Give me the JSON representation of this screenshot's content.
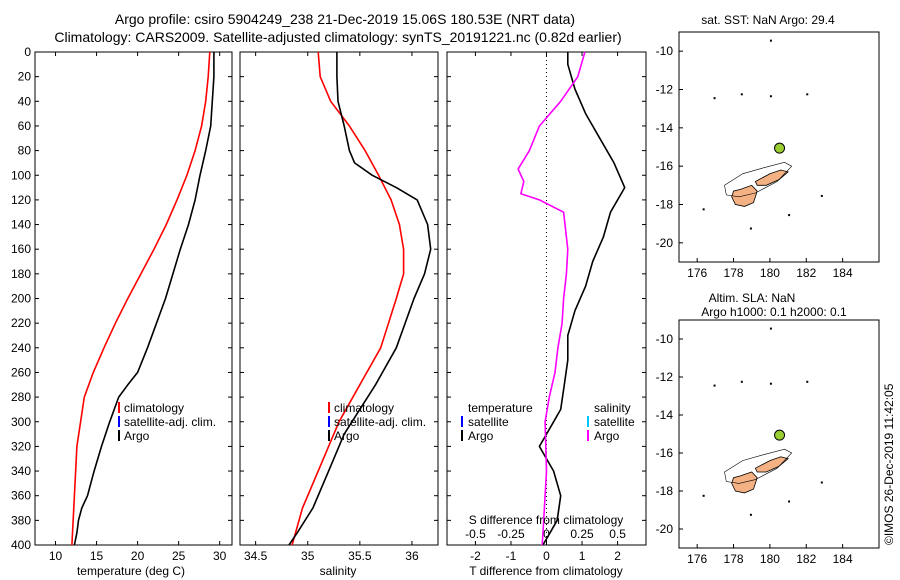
{
  "title_line1": "Argo profile: csiro 5904249_238 21-Dec-2019 15.06S 180.53E (NRT data)",
  "title_line2": "Climatology: CARS2009. Satellite-adjusted climatology: synTS_20191221.nc (0.82d earlier)",
  "footer_stamp": "©IMOS 26-Dec-2019 11:42:05",
  "colors": {
    "climatology": "#ff0000",
    "satellite": "#0000ff",
    "argo": "#000000",
    "salinity_diff": "#ff00ff",
    "sat_salinity": "#00c8ff",
    "marker": "#9acd32",
    "land": "#f4b183"
  },
  "chart_data": [
    {
      "type": "line",
      "name": "temperature",
      "xlabel": "temperature (deg C)",
      "xlim": [
        7.5,
        31.5
      ],
      "ylim": [
        0,
        400
      ],
      "xticks": [
        10,
        15,
        20,
        25,
        30
      ],
      "yticks": [
        0,
        20,
        40,
        60,
        80,
        100,
        120,
        140,
        160,
        180,
        200,
        220,
        240,
        260,
        280,
        300,
        320,
        340,
        360,
        380,
        400
      ],
      "legend": [
        "climatology",
        "satellite-adj. clim.",
        "Argo"
      ],
      "series": [
        {
          "name": "climatology",
          "color": "#ff0000",
          "x": [
            28.8,
            28.6,
            28.3,
            27.8,
            27.0,
            26.0,
            24.8,
            23.5,
            22.0,
            20.4,
            18.8,
            17.3,
            15.9,
            14.6,
            13.5,
            12.6,
            12.0
          ],
          "y": [
            0,
            20,
            40,
            60,
            80,
            100,
            120,
            140,
            160,
            180,
            200,
            220,
            240,
            260,
            280,
            320,
            400
          ]
        },
        {
          "name": "Argo",
          "color": "#000000",
          "x": [
            29.3,
            29.3,
            29.1,
            28.9,
            28.3,
            27.6,
            27.0,
            26.2,
            25.2,
            24.3,
            23.4,
            22.3,
            21.2,
            20.0,
            18.8,
            17.7,
            16.6,
            15.6,
            14.7,
            13.9,
            13.2,
            12.8,
            12.6,
            12.3
          ],
          "y": [
            0,
            20,
            40,
            60,
            80,
            100,
            120,
            140,
            160,
            180,
            200,
            220,
            240,
            260,
            270,
            280,
            300,
            320,
            340,
            360,
            370,
            380,
            390,
            400
          ]
        }
      ]
    },
    {
      "type": "line",
      "name": "salinity",
      "xlabel": "salinity",
      "xlim": [
        34.35,
        36.25
      ],
      "ylim": [
        0,
        400
      ],
      "xticks": [
        34.5,
        35,
        35.5,
        36
      ],
      "xticklabels": [
        "34.5",
        "35",
        "35.5",
        "36"
      ],
      "legend": [
        "climatology",
        "satellite-adj. clim.",
        "Argo"
      ],
      "series": [
        {
          "name": "climatology",
          "color": "#ff0000",
          "x": [
            35.1,
            35.12,
            35.22,
            35.4,
            35.55,
            35.68,
            35.8,
            35.88,
            35.92,
            35.92,
            35.85,
            35.7,
            35.5,
            35.3,
            35.1,
            34.95,
            34.85
          ],
          "y": [
            0,
            20,
            40,
            60,
            80,
            100,
            120,
            140,
            160,
            180,
            200,
            240,
            270,
            300,
            340,
            370,
            400
          ]
        },
        {
          "name": "Argo",
          "color": "#000000",
          "x": [
            35.28,
            35.28,
            35.29,
            35.35,
            35.4,
            35.45,
            35.62,
            35.85,
            36.05,
            36.15,
            36.18,
            36.12,
            36.02,
            35.85,
            35.65,
            35.5,
            35.35,
            35.2,
            35.05,
            34.9,
            34.82
          ],
          "y": [
            0,
            20,
            40,
            60,
            80,
            90,
            100,
            110,
            120,
            140,
            160,
            180,
            200,
            240,
            270,
            290,
            310,
            340,
            370,
            390,
            400
          ]
        }
      ]
    },
    {
      "type": "line",
      "name": "difference",
      "xlabel": "T difference from climatology",
      "xlabel_top": "S difference from climatology",
      "xlim": [
        -2.8,
        2.8
      ],
      "ylim": [
        0,
        400
      ],
      "xticks": [
        -2,
        -1,
        0,
        1,
        2
      ],
      "sticks": [
        -0.5,
        -0.25,
        0,
        0.25,
        0.5
      ],
      "sticklabels": [
        "-0.5",
        "-0.25",
        "0",
        "0.25",
        "0.5"
      ],
      "legend_left_title": "temperature",
      "legend_right_title": "salinity",
      "legend_left": [
        "satellite",
        "Argo"
      ],
      "legend_right": [
        "satellite",
        "Argo"
      ],
      "series": [
        {
          "name": "T Argo",
          "color": "#000000",
          "x": [
            0.6,
            0.6,
            0.8,
            1.1,
            1.5,
            1.9,
            2.2,
            1.8,
            1.6,
            1.3,
            1.1,
            0.8,
            0.6,
            0.6,
            0.5,
            0.4,
            0.2,
            0.0,
            -0.2,
            0.2,
            0.4,
            0.3,
            0.1,
            -0.1
          ],
          "y": [
            0,
            10,
            30,
            50,
            70,
            90,
            110,
            130,
            150,
            170,
            190,
            210,
            230,
            250,
            270,
            290,
            300,
            310,
            320,
            340,
            360,
            380,
            390,
            400
          ]
        },
        {
          "name": "S Argo",
          "color": "#ff00ff",
          "x": [
            0.27,
            0.22,
            0.1,
            -0.05,
            -0.12,
            -0.2,
            -0.16,
            -0.18,
            -0.05,
            0.12,
            0.15,
            0.14,
            0.12,
            0.11,
            0.08,
            0.06,
            0.02,
            -0.01,
            0.0,
            -0.02,
            -0.03
          ],
          "y": [
            0,
            20,
            40,
            60,
            80,
            95,
            105,
            115,
            120,
            130,
            160,
            180,
            200,
            220,
            240,
            260,
            280,
            300,
            340,
            380,
            400
          ]
        }
      ]
    },
    {
      "type": "scatter",
      "name": "map-sst",
      "title": "sat. SST: NaN Argo: 29.4",
      "xlim": [
        175,
        186
      ],
      "ylim": [
        -21,
        -9
      ],
      "xticks": [
        176,
        178,
        180,
        182,
        184
      ],
      "yticks": [
        -10,
        -12,
        -14,
        -16,
        -18,
        -20
      ],
      "points": [
        {
          "lon": 180.53,
          "lat": -15.06
        }
      ]
    },
    {
      "type": "scatter",
      "name": "map-sla",
      "title": "Altim. SLA: NaN",
      "subtitle": "Argo h1000: 0.1 h2000: 0.1",
      "xlim": [
        175,
        186
      ],
      "ylim": [
        -21,
        -9
      ],
      "xticks": [
        176,
        178,
        180,
        182,
        184
      ],
      "yticks": [
        -10,
        -12,
        -14,
        -16,
        -18,
        -20
      ],
      "points": [
        {
          "lon": 180.53,
          "lat": -15.06
        }
      ]
    }
  ]
}
